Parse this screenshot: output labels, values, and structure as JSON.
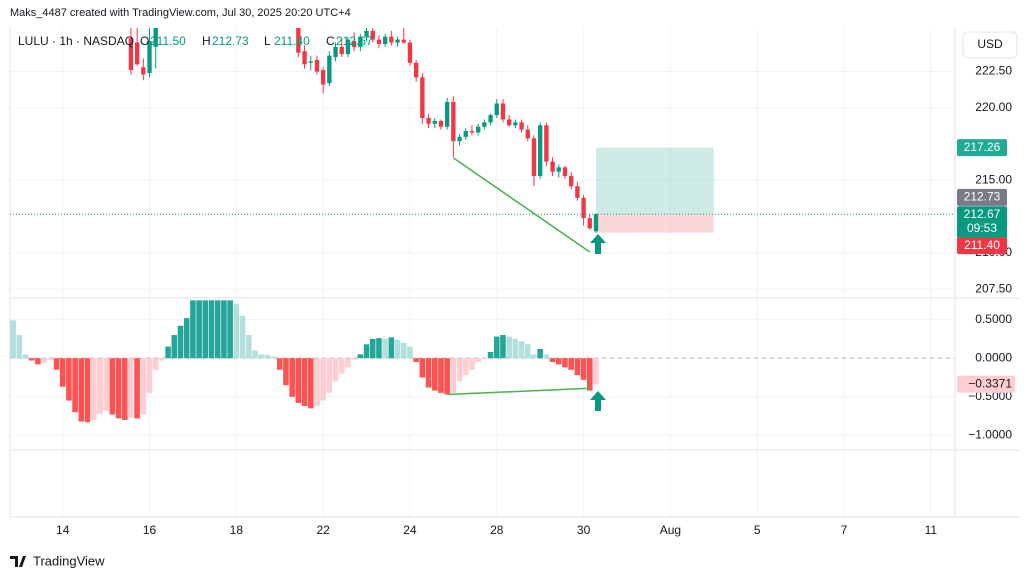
{
  "header": {
    "credit": "Maks_4487 created with TradingView.com, Jul 30, 2025 20:20 UTC+4",
    "symbol": "LULU · 1h · NASDAQ",
    "ohlc": [
      {
        "key": "O",
        "text": "211.50"
      },
      {
        "key": "H",
        "text": "212.73"
      },
      {
        "key": "L",
        "text": "211.40"
      },
      {
        "key": "C",
        "text": "212.67"
      }
    ]
  },
  "currency": "USD",
  "brand": "TradingView",
  "chart_data": [
    {
      "type": "candlestick",
      "up_color": "#089981",
      "down_color": "#f23645",
      "grid": true,
      "xlim": [
        -0.5,
        151.9
      ],
      "ylim": [
        206.9,
        225.5
      ],
      "xticks": [
        {
          "value": 8,
          "label": "14"
        },
        {
          "value": 22,
          "label": "16"
        },
        {
          "value": 36,
          "label": "18"
        },
        {
          "value": 50,
          "label": "22"
        },
        {
          "value": 64,
          "label": "24"
        },
        {
          "value": 78,
          "label": "28"
        },
        {
          "value": 92,
          "label": "30"
        },
        {
          "value": 106,
          "label": "Aug"
        },
        {
          "value": 120,
          "label": "5"
        },
        {
          "value": 134,
          "label": "7"
        },
        {
          "value": 148,
          "label": "11"
        }
      ],
      "yticks": [
        {
          "value": 222.5,
          "label": "222.50"
        },
        {
          "value": 220,
          "label": "220.00"
        },
        {
          "value": 215,
          "label": "215.00"
        },
        {
          "value": 210,
          "label": "210.00"
        },
        {
          "value": 207.5,
          "label": "207.50"
        }
      ],
      "open": [
        null,
        null,
        null,
        null,
        null,
        null,
        null,
        null,
        null,
        null,
        null,
        null,
        null,
        null,
        null,
        null,
        null,
        null,
        null,
        224.8,
        224.5,
        222.8,
        222.4,
        224.2,
        null,
        null,
        null,
        null,
        null,
        null,
        null,
        null,
        null,
        null,
        null,
        null,
        null,
        null,
        null,
        null,
        null,
        null,
        null,
        null,
        null,
        null,
        225.6,
        223.9,
        223.1,
        223.3,
        222.6,
        221.7,
        223.5,
        224.2,
        223.7,
        224.6,
        224.2,
        224.9,
        225.3,
        224.7,
        224.4,
        224.9,
        224.5,
        224.7,
        224.5,
        223.1,
        222.1,
        219.3,
        218.9,
        219.1,
        218.7,
        220.4,
        217.7,
        218.0,
        218.4,
        218.3,
        218.7,
        219.0,
        219.5,
        220.3,
        219.2,
        218.8,
        219.0,
        218.5,
        217.9,
        215.3,
        218.8,
        216.3,
        215.6,
        215.9,
        215.3,
        214.6,
        213.8,
        212.4,
        211.5
      ],
      "high": [
        null,
        null,
        null,
        null,
        null,
        null,
        null,
        null,
        null,
        null,
        null,
        null,
        null,
        null,
        null,
        null,
        null,
        null,
        null,
        225.6,
        225.6,
        223.4,
        225.6,
        225.6,
        null,
        null,
        null,
        null,
        null,
        null,
        null,
        null,
        null,
        null,
        null,
        null,
        null,
        null,
        null,
        null,
        null,
        null,
        null,
        null,
        null,
        null,
        225.8,
        224.3,
        223.6,
        223.6,
        222.8,
        223.9,
        224.5,
        224.8,
        224.9,
        225.2,
        225.1,
        225.7,
        225.8,
        225.0,
        225.1,
        225.3,
        224.9,
        225.5,
        224.7,
        223.3,
        222.4,
        219.6,
        219.3,
        219.2,
        220.7,
        220.8,
        218.2,
        218.6,
        218.8,
        218.9,
        219.2,
        219.6,
        220.6,
        220.6,
        219.5,
        219.2,
        219.2,
        218.8,
        218.1,
        219.0,
        219.0,
        216.6,
        216.1,
        216.0,
        215.6,
        214.9,
        214.0,
        212.7,
        212.73
      ],
      "low": [
        null,
        null,
        null,
        null,
        null,
        null,
        null,
        null,
        null,
        null,
        null,
        null,
        null,
        null,
        null,
        null,
        null,
        null,
        null,
        222.3,
        222.9,
        221.9,
        222.1,
        222.7,
        null,
        null,
        null,
        null,
        null,
        null,
        null,
        null,
        null,
        null,
        null,
        null,
        null,
        null,
        null,
        null,
        null,
        null,
        null,
        null,
        null,
        null,
        223.5,
        222.7,
        222.6,
        222.3,
        221.0,
        221.5,
        223.2,
        223.5,
        223.5,
        223.9,
        223.9,
        224.6,
        224.5,
        224.1,
        224.2,
        224.3,
        224.2,
        224.4,
        222.9,
        221.8,
        218.9,
        218.6,
        218.6,
        218.5,
        218.5,
        216.6,
        217.4,
        217.8,
        218.1,
        218.1,
        218.5,
        218.8,
        219.3,
        219.0,
        218.7,
        218.6,
        218.3,
        217.7,
        214.6,
        215.1,
        216.0,
        215.3,
        215.2,
        215.1,
        214.4,
        213.6,
        211.9,
        211.6,
        211.4
      ],
      "close": [
        null,
        null,
        null,
        null,
        null,
        null,
        null,
        null,
        null,
        null,
        null,
        null,
        null,
        null,
        null,
        null,
        null,
        null,
        null,
        222.6,
        223.0,
        222.3,
        224.6,
        225.6,
        null,
        null,
        null,
        null,
        null,
        null,
        null,
        null,
        null,
        null,
        null,
        null,
        null,
        null,
        null,
        null,
        null,
        null,
        null,
        null,
        null,
        null,
        223.8,
        223.0,
        223.2,
        222.5,
        221.6,
        223.6,
        224.2,
        223.7,
        224.7,
        224.2,
        224.9,
        225.3,
        224.7,
        224.4,
        224.9,
        224.5,
        224.7,
        224.5,
        223.1,
        222.1,
        219.3,
        218.9,
        219.1,
        218.7,
        220.4,
        217.7,
        218.0,
        218.4,
        218.3,
        218.7,
        219.0,
        219.5,
        220.3,
        219.2,
        218.8,
        219.0,
        218.5,
        217.9,
        215.3,
        218.8,
        216.3,
        215.6,
        215.9,
        215.3,
        214.6,
        213.8,
        212.4,
        211.7,
        212.67
      ],
      "countdown": "09:53",
      "position": {
        "start": 94,
        "end": 113,
        "entry": 212.67,
        "target": 217.26,
        "stop": {
          "value": 211.4,
          "label": "211.40"
        }
      },
      "trendline": {
        "color": "#4caf50",
        "from": [
          71,
          216.55
        ],
        "to": [
          93,
          210.07
        ]
      }
    },
    {
      "type": "histogram",
      "zero_line": true,
      "colors": {
        "pos_rising": "#26a69a",
        "pos_falling": "#b2dfdb",
        "neg_falling": "#ff5252",
        "neg_rising": "#ffcdd2"
      },
      "xlim": [
        -0.5,
        151.9
      ],
      "ylim": [
        -1.19,
        0.78
      ],
      "yticks": [
        {
          "value": 0.5,
          "label": "0.5000"
        },
        {
          "value": 0,
          "label": "0.0000"
        },
        {
          "value": -0.5,
          "label": "−0.5000"
        },
        {
          "value": -1,
          "label": "−1.0000"
        }
      ],
      "values": [
        0.49,
        0.3,
        0.05,
        -0.03,
        -0.08,
        -0.06,
        -0.02,
        -0.15,
        -0.37,
        -0.55,
        -0.7,
        -0.82,
        -0.83,
        -0.8,
        -0.72,
        -0.68,
        -0.73,
        -0.78,
        -0.8,
        -0.77,
        -0.78,
        -0.73,
        -0.45,
        -0.15,
        -0.03,
        0.15,
        0.3,
        0.42,
        0.52,
        0.75,
        0.75,
        0.75,
        0.75,
        0.75,
        0.75,
        0.75,
        0.7,
        0.55,
        0.3,
        0.1,
        0.05,
        0.04,
        0.02,
        -0.15,
        -0.35,
        -0.5,
        -0.58,
        -0.62,
        -0.65,
        -0.62,
        -0.55,
        -0.45,
        -0.3,
        -0.2,
        -0.12,
        -0.02,
        0.05,
        0.18,
        0.25,
        0.26,
        0.25,
        0.27,
        0.24,
        0.2,
        0.15,
        -0.05,
        -0.25,
        -0.38,
        -0.42,
        -0.45,
        -0.47,
        -0.45,
        -0.3,
        -0.22,
        -0.15,
        -0.05,
        -0.01,
        0.08,
        0.28,
        0.3,
        0.28,
        0.25,
        0.22,
        0.18,
        0.05,
        0.12,
        0.05,
        -0.05,
        -0.08,
        -0.12,
        -0.15,
        -0.22,
        -0.28,
        -0.42,
        -0.3371
      ],
      "last_value_label": "−0.3371",
      "trendline": {
        "color": "#4caf50",
        "from": [
          70,
          -0.47
        ],
        "to": [
          93,
          -0.39
        ]
      }
    }
  ]
}
